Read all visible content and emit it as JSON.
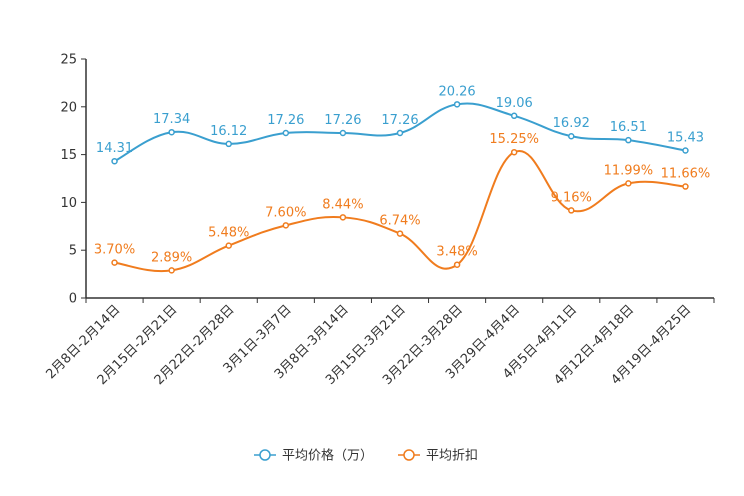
{
  "chart_data": {
    "type": "line",
    "title": "",
    "xlabel": "",
    "ylabel": "",
    "ylim": [
      0,
      25
    ],
    "yticks": [
      0,
      5,
      10,
      15,
      20,
      25
    ],
    "grid": false,
    "legend_position": "bottom-center",
    "categories": [
      "2月8日-2月14日",
      "2月15日-2月21日",
      "2月22日-2月28日",
      "3月1日-3月7日",
      "3月8日-3月14日",
      "3月15日-3月21日",
      "3月22日-3月28日",
      "3月29日-4月4日",
      "4月5日-4月11日",
      "4月12日-4月18日",
      "4月19日-4月25日"
    ],
    "series": [
      {
        "name": "平均价格（万）",
        "color": "#3a9fcf",
        "values": [
          14.31,
          17.34,
          16.12,
          17.26,
          17.26,
          17.26,
          20.26,
          19.06,
          16.92,
          16.51,
          15.43
        ],
        "labels": [
          "14.31",
          "17.34",
          "16.12",
          "17.26",
          "17.26",
          "17.26",
          "20.26",
          "19.06",
          "16.92",
          "16.51",
          "15.43"
        ]
      },
      {
        "name": "平均折扣",
        "color": "#f07c1e",
        "values": [
          3.7,
          2.89,
          5.48,
          7.6,
          8.44,
          6.74,
          3.48,
          15.25,
          9.16,
          11.99,
          11.66
        ],
        "labels": [
          "3.70%",
          "2.89%",
          "5.48%",
          "7.60%",
          "8.44%",
          "6.74%",
          "3.48%",
          "15.25%",
          "9.16%",
          "11.99%",
          "11.66%"
        ]
      }
    ]
  }
}
